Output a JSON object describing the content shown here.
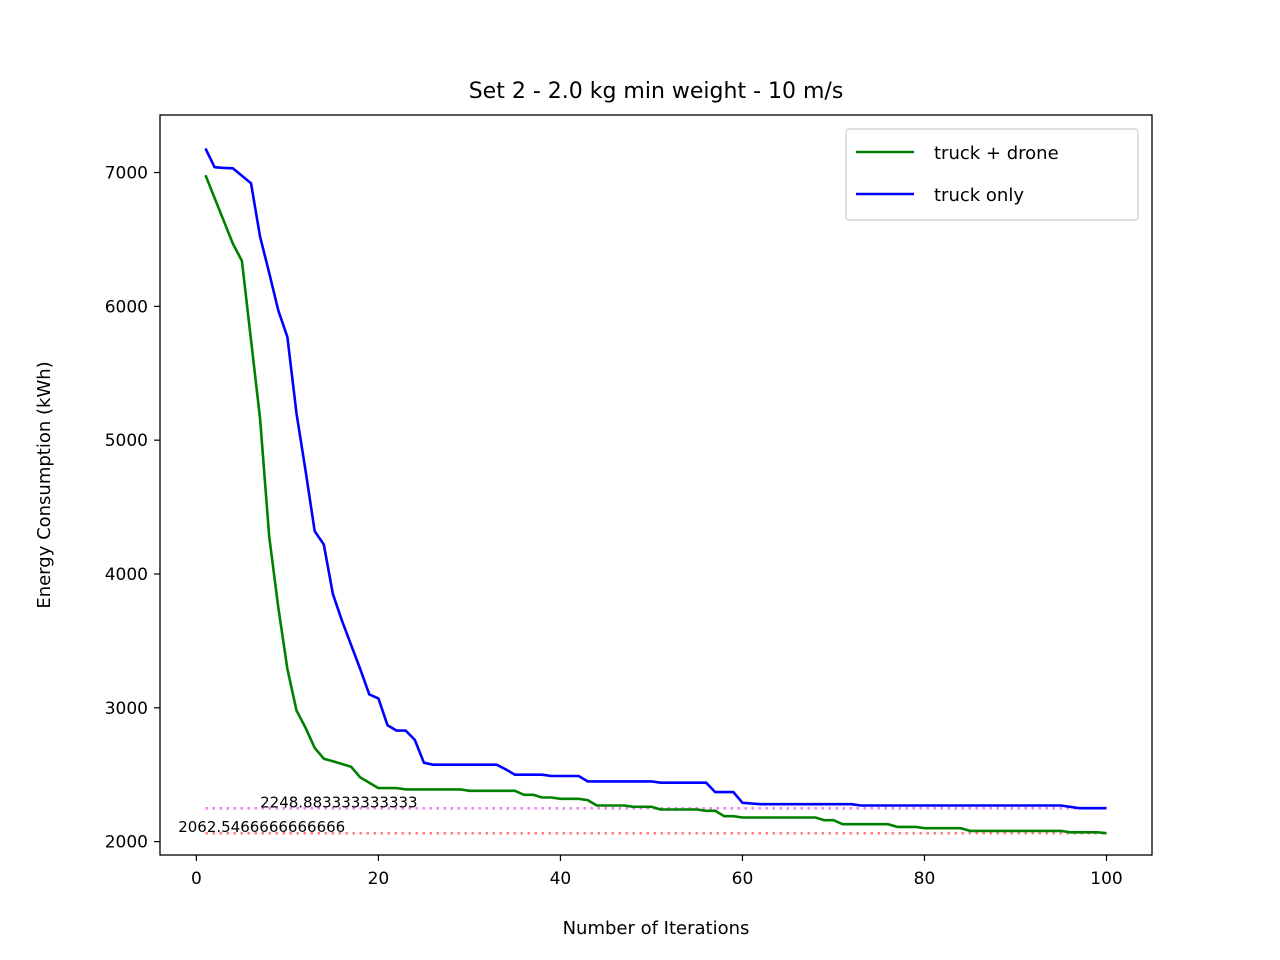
{
  "chart_data": {
    "type": "line",
    "title": "Set 2 - 2.0 kg min weight - 10 m/s",
    "xlabel": "Number of Iterations",
    "ylabel": "Energy Consumption (kWh)",
    "xlim": [
      -4,
      105
    ],
    "ylim": [
      1900,
      7430
    ],
    "xticks": [
      0,
      20,
      40,
      60,
      80,
      100
    ],
    "yticks": [
      2000,
      3000,
      4000,
      5000,
      6000,
      7000
    ],
    "grid": false,
    "legend_position": "top-right",
    "series": [
      {
        "name": "truck + drone",
        "color": "#008000",
        "points": [
          [
            1,
            6980
          ],
          [
            2,
            6810
          ],
          [
            3,
            6640
          ],
          [
            4,
            6470
          ],
          [
            5,
            6340
          ],
          [
            6,
            5750
          ],
          [
            7,
            5160
          ],
          [
            8,
            4280
          ],
          [
            9,
            3750
          ],
          [
            10,
            3290
          ],
          [
            11,
            2980
          ],
          [
            12,
            2850
          ],
          [
            13,
            2700
          ],
          [
            14,
            2620
          ],
          [
            15,
            2600
          ],
          [
            16,
            2580
          ],
          [
            17,
            2560
          ],
          [
            18,
            2480
          ],
          [
            19,
            2440
          ],
          [
            20,
            2400
          ],
          [
            22,
            2400
          ],
          [
            23,
            2390
          ],
          [
            29,
            2390
          ],
          [
            30,
            2380
          ],
          [
            35,
            2380
          ],
          [
            36,
            2350
          ],
          [
            37,
            2350
          ],
          [
            38,
            2330
          ],
          [
            39,
            2330
          ],
          [
            40,
            2320
          ],
          [
            42,
            2320
          ],
          [
            43,
            2310
          ],
          [
            44,
            2270
          ],
          [
            47,
            2270
          ],
          [
            48,
            2260
          ],
          [
            50,
            2260
          ],
          [
            51,
            2240
          ],
          [
            55,
            2240
          ],
          [
            56,
            2230
          ],
          [
            57,
            2230
          ],
          [
            58,
            2190
          ],
          [
            59,
            2190
          ],
          [
            60,
            2180
          ],
          [
            68,
            2180
          ],
          [
            69,
            2160
          ],
          [
            70,
            2160
          ],
          [
            71,
            2130
          ],
          [
            76,
            2130
          ],
          [
            77,
            2110
          ],
          [
            79,
            2110
          ],
          [
            80,
            2100
          ],
          [
            84,
            2100
          ],
          [
            85,
            2080
          ],
          [
            95,
            2080
          ],
          [
            96,
            2070
          ],
          [
            99,
            2070
          ],
          [
            100,
            2063
          ]
        ]
      },
      {
        "name": "truck only",
        "color": "#0000ff",
        "points": [
          [
            1,
            7180
          ],
          [
            2,
            7040
          ],
          [
            3,
            7035
          ],
          [
            4,
            7032
          ],
          [
            6,
            6920
          ],
          [
            7,
            6520
          ],
          [
            8,
            6250
          ],
          [
            9,
            5970
          ],
          [
            10,
            5770
          ],
          [
            11,
            5200
          ],
          [
            12,
            4770
          ],
          [
            13,
            4320
          ],
          [
            14,
            4220
          ],
          [
            15,
            3850
          ],
          [
            16,
            3650
          ],
          [
            17,
            3470
          ],
          [
            18,
            3290
          ],
          [
            19,
            3100
          ],
          [
            20,
            3070
          ],
          [
            21,
            2870
          ],
          [
            22,
            2830
          ],
          [
            23,
            2830
          ],
          [
            24,
            2760
          ],
          [
            25,
            2590
          ],
          [
            26,
            2575
          ],
          [
            30,
            2575
          ],
          [
            33,
            2575
          ],
          [
            34,
            2540
          ],
          [
            35,
            2500
          ],
          [
            38,
            2500
          ],
          [
            39,
            2490
          ],
          [
            42,
            2490
          ],
          [
            43,
            2450
          ],
          [
            50,
            2450
          ],
          [
            51,
            2440
          ],
          [
            56,
            2440
          ],
          [
            57,
            2370
          ],
          [
            59,
            2370
          ],
          [
            60,
            2290
          ],
          [
            61,
            2285
          ],
          [
            62,
            2280
          ],
          [
            72,
            2280
          ],
          [
            73,
            2270
          ],
          [
            95,
            2270
          ],
          [
            97,
            2250
          ],
          [
            100,
            2250
          ]
        ]
      }
    ],
    "reference_lines": [
      {
        "value": 2248.883333333333,
        "label": "2248.883333333333",
        "color": "#ee82ee"
      },
      {
        "value": 2062.5466666666666,
        "label": "2062.5466666666666",
        "color": "#ff7f7f"
      }
    ]
  }
}
